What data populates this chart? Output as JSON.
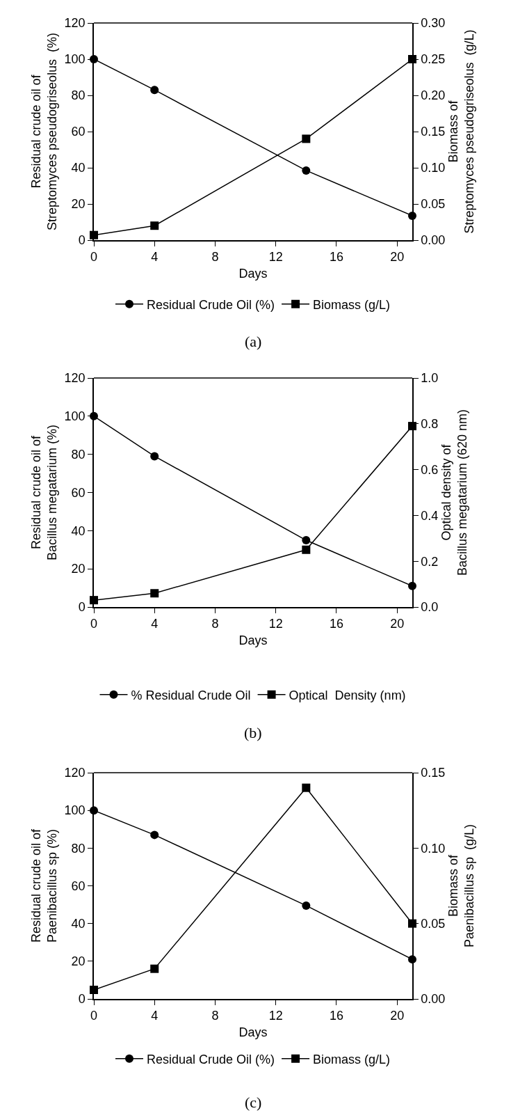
{
  "chart_data": [
    {
      "type": "line",
      "x": [
        0,
        4,
        14,
        21
      ],
      "xlabel": "Days",
      "ylabel": "Residual crude oil of\nStreptomyces pseudogriseolus  (%)",
      "y2label": "Biomass of\nStreptomyces pseudogriseolus  (g/L)",
      "xlim": [
        0,
        21
      ],
      "xticks": [
        0,
        4,
        8,
        12,
        16,
        20
      ],
      "ylim": [
        0,
        120
      ],
      "yticks": [
        0,
        20,
        40,
        60,
        80,
        100,
        120
      ],
      "y2lim": [
        0,
        0.3
      ],
      "y2ticks": [
        {
          "value": 0,
          "label": "0.00"
        },
        {
          "value": 0.05,
          "label": "0.05"
        },
        {
          "value": 0.1,
          "label": "0.10"
        },
        {
          "value": 0.15,
          "label": "0.15"
        },
        {
          "value": 0.2,
          "label": "0.20"
        },
        {
          "value": 0.25,
          "label": "0.25"
        },
        {
          "value": 0.3,
          "label": "0.30"
        }
      ],
      "series": [
        {
          "name": "Residual Crude Oil (%)",
          "color": "#000000",
          "marker": "circle",
          "values": [
            100,
            83,
            38.5,
            13.5
          ]
        },
        {
          "name": "Biomass (g/L)",
          "color": "#000000",
          "marker": "square",
          "axis": "y2",
          "values": [
            0.007,
            0.02,
            0.14,
            0.25
          ]
        }
      ],
      "legend": "bottom",
      "line_style": "solid",
      "annotations": [
        "(a)"
      ]
    },
    {
      "type": "line",
      "x": [
        0,
        4,
        14,
        21
      ],
      "xlabel": "Days",
      "ylabel": "Residual crude oil of\nBacillus megatarium (%)",
      "y2label": "Optical density of\nBacillus megatarium (620 nm)",
      "xlim": [
        0,
        21
      ],
      "xticks": [
        0,
        4,
        8,
        12,
        16,
        20
      ],
      "ylim": [
        0,
        120
      ],
      "yticks": [
        0,
        20,
        40,
        60,
        80,
        100,
        120
      ],
      "y2lim": [
        0,
        1
      ],
      "y2ticks": [
        {
          "value": 0,
          "label": "0.0"
        },
        {
          "value": 0.2,
          "label": "0.2"
        },
        {
          "value": 0.4,
          "label": "0.4"
        },
        {
          "value": 0.6,
          "label": "0.6"
        },
        {
          "value": 0.8,
          "label": "0.8"
        },
        {
          "value": 1,
          "label": "1.0"
        }
      ],
      "series": [
        {
          "name": "% Residual Crude Oil",
          "color": "#000000",
          "marker": "circle",
          "values": [
            100,
            79,
            35,
            11
          ]
        },
        {
          "name": "Optical  Density (nm)",
          "color": "#000000",
          "marker": "square",
          "axis": "y2",
          "values": [
            0.03,
            0.06,
            0.25,
            0.79
          ]
        }
      ],
      "legend": "bottom",
      "line_style": "solid",
      "annotations": [
        "(b)"
      ]
    },
    {
      "type": "line",
      "x": [
        0,
        4,
        14,
        21
      ],
      "xlabel": "Days",
      "ylabel": "Residual crude oil of\nPaenibacillus sp (%)",
      "y2label": "Biomass of\nPaenibacillus sp  (g/L)",
      "xlim": [
        0,
        21
      ],
      "xticks": [
        0,
        4,
        8,
        12,
        16,
        20
      ],
      "ylim": [
        0,
        120
      ],
      "yticks": [
        0,
        20,
        40,
        60,
        80,
        100,
        120
      ],
      "y2lim": [
        0,
        0.15
      ],
      "y2ticks": [
        {
          "value": 0,
          "label": "0.00"
        },
        {
          "value": 0.05,
          "label": "0.05"
        },
        {
          "value": 0.1,
          "label": "0.10"
        },
        {
          "value": 0.15,
          "label": "0.15"
        }
      ],
      "series": [
        {
          "name": "Residual Crude Oil (%)",
          "color": "#000000",
          "marker": "circle",
          "values": [
            100,
            87,
            49.5,
            21
          ]
        },
        {
          "name": "Biomass (g/L)",
          "color": "#000000",
          "marker": "square",
          "axis": "y2",
          "values": [
            0.006,
            0.02,
            0.14,
            0.05
          ]
        }
      ],
      "legend": "bottom",
      "line_style": "solid",
      "annotations": [
        "(c)"
      ]
    }
  ]
}
